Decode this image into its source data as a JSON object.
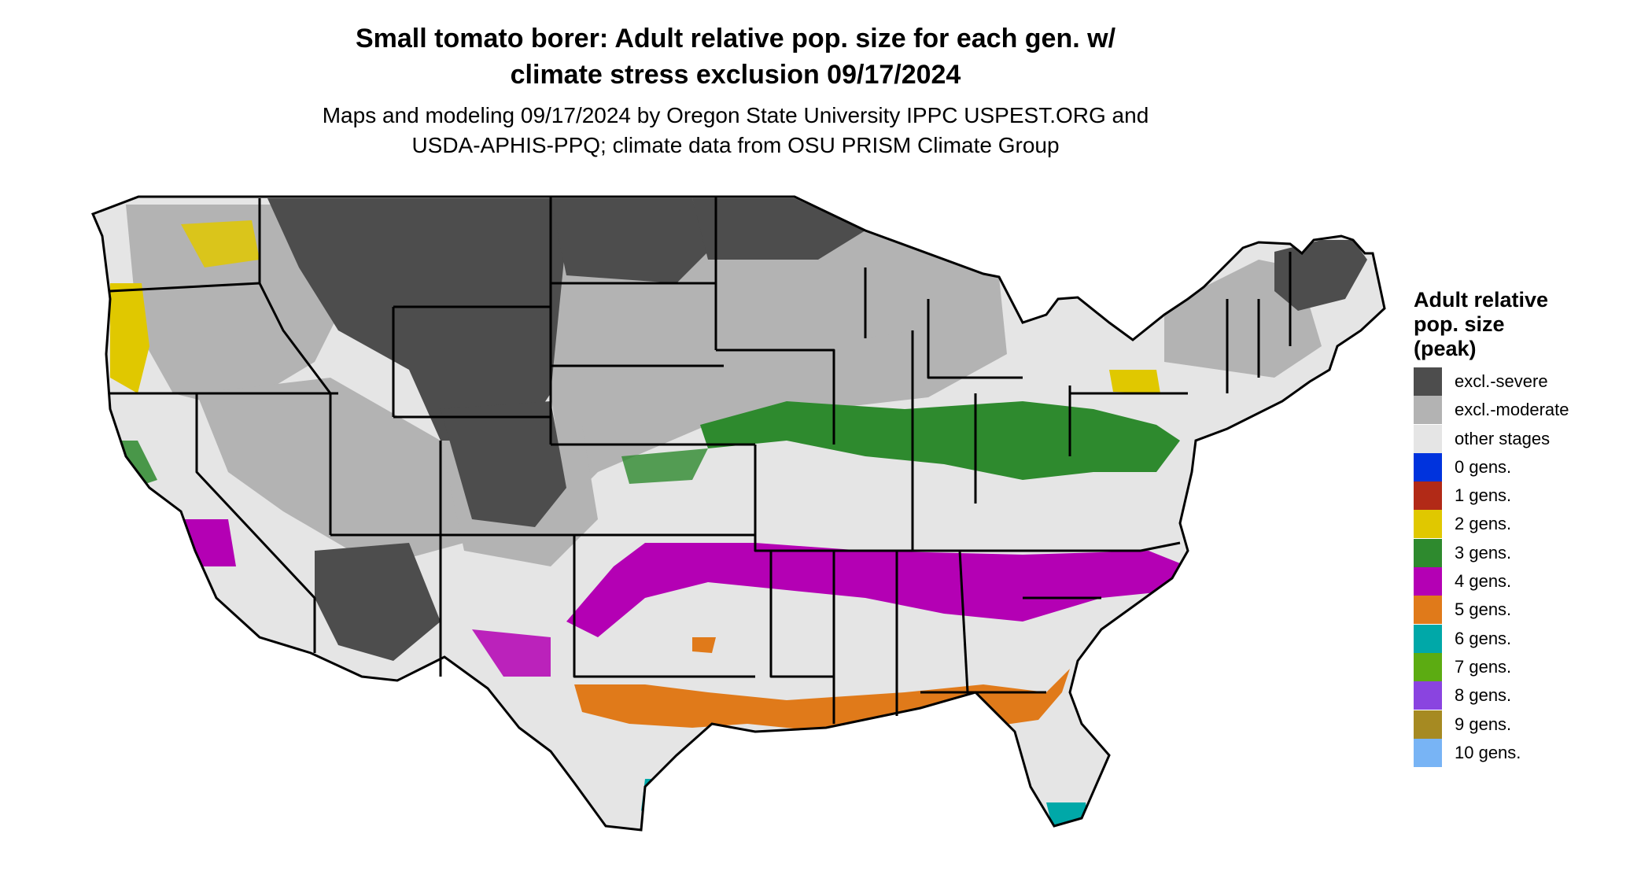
{
  "title_line1": "Small tomato borer: Adult relative pop. size for each gen. w/",
  "title_line2": "climate stress exclusion 09/17/2024",
  "subtitle_line1": "Maps and modeling 09/17/2024 by Oregon State University IPPC USPEST.ORG and",
  "subtitle_line2": "USDA-APHIS-PPQ; climate data from OSU PRISM Climate Group",
  "legend": {
    "title_line1": "Adult relative",
    "title_line2": "pop. size",
    "title_line3": "(peak)",
    "items": [
      {
        "label": "excl.-severe",
        "color": "#4d4d4d"
      },
      {
        "label": "excl.-moderate",
        "color": "#b3b3b3"
      },
      {
        "label": "other stages",
        "color": "#e5e5e5"
      },
      {
        "label": "0 gens.",
        "color": "#0033dd"
      },
      {
        "label": "1 gens.",
        "color": "#b22a17"
      },
      {
        "label": "2 gens.",
        "color": "#e0c800"
      },
      {
        "label": "3 gens.",
        "color": "#2e8a2e"
      },
      {
        "label": "4 gens.",
        "color": "#b400b4"
      },
      {
        "label": "5 gens.",
        "color": "#e07a1a"
      },
      {
        "label": "6 gens.",
        "color": "#00a8a8"
      },
      {
        "label": "7 gens.",
        "color": "#5cac12"
      },
      {
        "label": "8 gens.",
        "color": "#8a44e0"
      },
      {
        "label": "9 gens.",
        "color": "#a68a22"
      },
      {
        "label": "10 gens.",
        "color": "#78b4f5"
      }
    ]
  }
}
